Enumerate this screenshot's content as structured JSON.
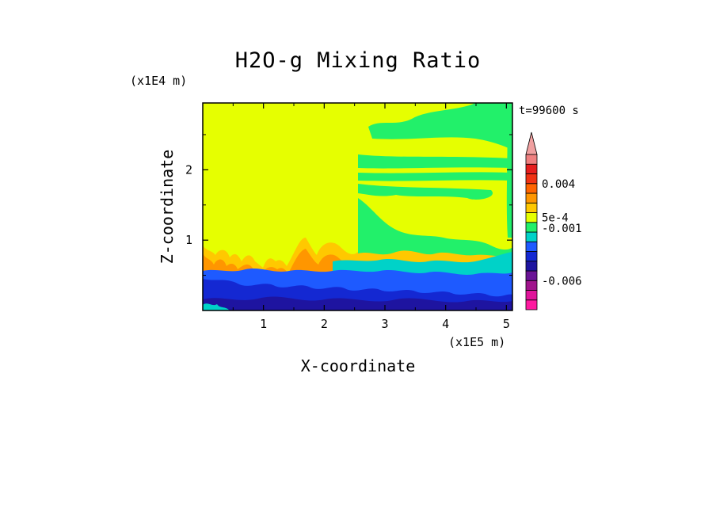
{
  "chart_data": {
    "type": "heatmap",
    "title": "H2O-g Mixing Ratio",
    "xlabel": "X-coordinate",
    "ylabel": "Z-coordinate",
    "x_scale_label": "(x1E5 m)",
    "y_scale_label": "(x1E4 m)",
    "time_label": "t=99600 s",
    "xlim": [
      0,
      5.1
    ],
    "ylim": [
      0,
      2.95
    ],
    "x_ticks": [
      {
        "value": 1,
        "label": "1"
      },
      {
        "value": 2,
        "label": "2"
      },
      {
        "value": 3,
        "label": "3"
      },
      {
        "value": 4,
        "label": "4"
      },
      {
        "value": 5,
        "label": "5"
      }
    ],
    "y_ticks": [
      {
        "value": 1,
        "label": "1"
      },
      {
        "value": 2,
        "label": "2"
      }
    ],
    "colorbar": {
      "levels": [
        {
          "color": "#ff1aa0"
        },
        {
          "color": "#e0149a"
        },
        {
          "color": "#a0148c"
        },
        {
          "color": "#6a1496"
        },
        {
          "color": "#1e14a0"
        },
        {
          "color": "#1428d2"
        },
        {
          "color": "#1e5aff"
        },
        {
          "color": "#00d2c8"
        },
        {
          "color": "#22f06a"
        },
        {
          "color": "#e6ff00"
        },
        {
          "color": "#ffc800"
        },
        {
          "color": "#ff9600"
        },
        {
          "color": "#ff6400"
        },
        {
          "color": "#f03214"
        },
        {
          "color": "#e61e1e"
        },
        {
          "color": "#f08080"
        }
      ],
      "extend_top_color": "#f0a0a0",
      "labels": [
        {
          "text": "0.004",
          "at_level": 13
        },
        {
          "text": "5e-4",
          "at_level": 9.5
        },
        {
          "text": "-0.001",
          "at_level": 8.4
        },
        {
          "text": "-0.006",
          "at_level": 3
        }
      ]
    },
    "regions": [
      {
        "desc": "left half above z~0.9",
        "x": [
          0,
          2.55
        ],
        "z": [
          0.9,
          2.95
        ],
        "color": "#e6ff00"
      },
      {
        "desc": "right half upper",
        "x": [
          2.55,
          5.1
        ],
        "z": [
          0.6,
          2.95
        ],
        "color": "#e6ff00"
      },
      {
        "desc": "low layer",
        "x": [
          0,
          5.1
        ],
        "z": [
          0,
          0.6
        ],
        "color": "#1428d2"
      }
    ]
  }
}
